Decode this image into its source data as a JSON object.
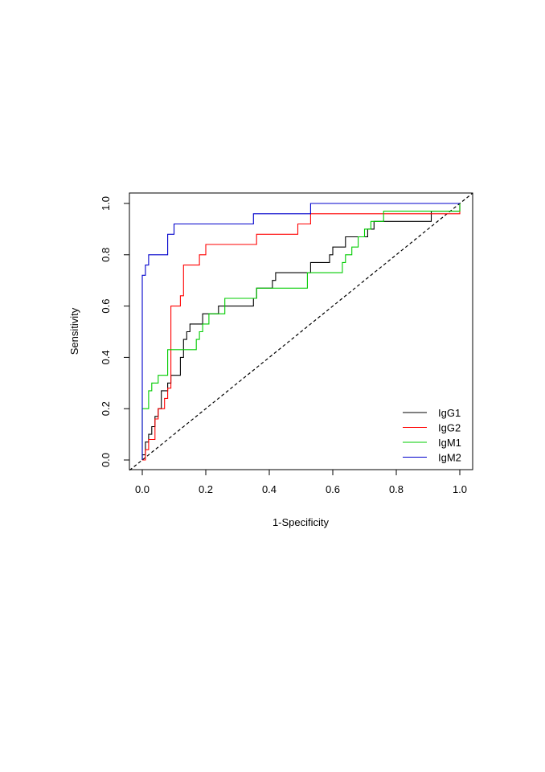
{
  "chart_data": {
    "type": "line",
    "title": "",
    "xlabel": "1-Specificity",
    "ylabel": "Sensitivity",
    "xlim": [
      0,
      1
    ],
    "ylim": [
      0,
      1
    ],
    "x_ticks": [
      "0.0",
      "0.2",
      "0.4",
      "0.6",
      "0.8",
      "1.0"
    ],
    "y_ticks": [
      "0.0",
      "0.2",
      "0.4",
      "0.6",
      "0.8",
      "1.0"
    ],
    "grid": false,
    "legend_position": "bottom-right",
    "reference_line": {
      "style": "dashed",
      "color": "#000000",
      "from": [
        0,
        0
      ],
      "to": [
        1,
        1
      ]
    },
    "series": [
      {
        "name": "IgG1",
        "color": "#000000",
        "points": [
          [
            0,
            0
          ],
          [
            0,
            0.02
          ],
          [
            0.01,
            0.02
          ],
          [
            0.01,
            0.07
          ],
          [
            0.02,
            0.07
          ],
          [
            0.02,
            0.1
          ],
          [
            0.03,
            0.1
          ],
          [
            0.03,
            0.13
          ],
          [
            0.04,
            0.13
          ],
          [
            0.04,
            0.17
          ],
          [
            0.05,
            0.17
          ],
          [
            0.05,
            0.2
          ],
          [
            0.06,
            0.2
          ],
          [
            0.06,
            0.27
          ],
          [
            0.08,
            0.27
          ],
          [
            0.08,
            0.3
          ],
          [
            0.09,
            0.3
          ],
          [
            0.09,
            0.33
          ],
          [
            0.12,
            0.33
          ],
          [
            0.12,
            0.4
          ],
          [
            0.13,
            0.4
          ],
          [
            0.13,
            0.47
          ],
          [
            0.14,
            0.47
          ],
          [
            0.14,
            0.5
          ],
          [
            0.15,
            0.5
          ],
          [
            0.15,
            0.53
          ],
          [
            0.19,
            0.53
          ],
          [
            0.19,
            0.57
          ],
          [
            0.24,
            0.57
          ],
          [
            0.24,
            0.6
          ],
          [
            0.35,
            0.6
          ],
          [
            0.35,
            0.63
          ],
          [
            0.36,
            0.63
          ],
          [
            0.36,
            0.67
          ],
          [
            0.41,
            0.67
          ],
          [
            0.41,
            0.7
          ],
          [
            0.42,
            0.7
          ],
          [
            0.42,
            0.73
          ],
          [
            0.53,
            0.73
          ],
          [
            0.53,
            0.77
          ],
          [
            0.59,
            0.77
          ],
          [
            0.59,
            0.8
          ],
          [
            0.6,
            0.8
          ],
          [
            0.6,
            0.83
          ],
          [
            0.64,
            0.83
          ],
          [
            0.64,
            0.87
          ],
          [
            0.71,
            0.87
          ],
          [
            0.71,
            0.9
          ],
          [
            0.73,
            0.9
          ],
          [
            0.73,
            0.93
          ],
          [
            0.91,
            0.93
          ],
          [
            0.91,
            0.97
          ],
          [
            1,
            0.97
          ],
          [
            1,
            1
          ]
        ]
      },
      {
        "name": "IgG2",
        "color": "#ff0000",
        "points": [
          [
            0,
            0
          ],
          [
            0.01,
            0
          ],
          [
            0.01,
            0.04
          ],
          [
            0.02,
            0.04
          ],
          [
            0.02,
            0.08
          ],
          [
            0.04,
            0.08
          ],
          [
            0.04,
            0.16
          ],
          [
            0.05,
            0.16
          ],
          [
            0.05,
            0.2
          ],
          [
            0.07,
            0.2
          ],
          [
            0.07,
            0.24
          ],
          [
            0.08,
            0.24
          ],
          [
            0.08,
            0.28
          ],
          [
            0.09,
            0.28
          ],
          [
            0.09,
            0.6
          ],
          [
            0.12,
            0.6
          ],
          [
            0.12,
            0.64
          ],
          [
            0.13,
            0.64
          ],
          [
            0.13,
            0.76
          ],
          [
            0.18,
            0.76
          ],
          [
            0.18,
            0.8
          ],
          [
            0.2,
            0.8
          ],
          [
            0.2,
            0.84
          ],
          [
            0.36,
            0.84
          ],
          [
            0.36,
            0.88
          ],
          [
            0.49,
            0.88
          ],
          [
            0.49,
            0.92
          ],
          [
            0.53,
            0.92
          ],
          [
            0.53,
            0.96
          ],
          [
            1,
            0.96
          ],
          [
            1,
            1
          ]
        ]
      },
      {
        "name": "IgM1",
        "color": "#00cc00",
        "points": [
          [
            0,
            0
          ],
          [
            0,
            0.2
          ],
          [
            0.02,
            0.2
          ],
          [
            0.02,
            0.27
          ],
          [
            0.03,
            0.27
          ],
          [
            0.03,
            0.3
          ],
          [
            0.05,
            0.3
          ],
          [
            0.05,
            0.33
          ],
          [
            0.08,
            0.33
          ],
          [
            0.08,
            0.43
          ],
          [
            0.17,
            0.43
          ],
          [
            0.17,
            0.47
          ],
          [
            0.18,
            0.47
          ],
          [
            0.18,
            0.5
          ],
          [
            0.19,
            0.5
          ],
          [
            0.19,
            0.53
          ],
          [
            0.21,
            0.53
          ],
          [
            0.21,
            0.57
          ],
          [
            0.26,
            0.57
          ],
          [
            0.26,
            0.63
          ],
          [
            0.36,
            0.63
          ],
          [
            0.36,
            0.67
          ],
          [
            0.52,
            0.67
          ],
          [
            0.52,
            0.73
          ],
          [
            0.63,
            0.73
          ],
          [
            0.63,
            0.77
          ],
          [
            0.64,
            0.77
          ],
          [
            0.64,
            0.8
          ],
          [
            0.66,
            0.8
          ],
          [
            0.66,
            0.83
          ],
          [
            0.68,
            0.83
          ],
          [
            0.68,
            0.87
          ],
          [
            0.7,
            0.87
          ],
          [
            0.7,
            0.9
          ],
          [
            0.72,
            0.9
          ],
          [
            0.72,
            0.93
          ],
          [
            0.76,
            0.93
          ],
          [
            0.76,
            0.97
          ],
          [
            1,
            0.97
          ],
          [
            1,
            1
          ]
        ]
      },
      {
        "name": "IgM2",
        "color": "#0000cc",
        "points": [
          [
            0,
            0
          ],
          [
            0,
            0.72
          ],
          [
            0.01,
            0.72
          ],
          [
            0.01,
            0.76
          ],
          [
            0.02,
            0.76
          ],
          [
            0.02,
            0.8
          ],
          [
            0.08,
            0.8
          ],
          [
            0.08,
            0.88
          ],
          [
            0.1,
            0.88
          ],
          [
            0.1,
            0.92
          ],
          [
            0.35,
            0.92
          ],
          [
            0.35,
            0.96
          ],
          [
            0.53,
            0.96
          ],
          [
            0.53,
            1
          ],
          [
            1,
            1
          ]
        ]
      }
    ]
  }
}
